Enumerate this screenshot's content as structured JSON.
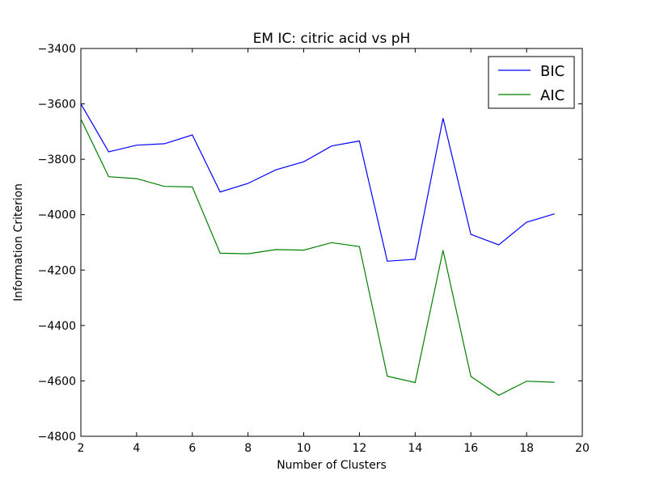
{
  "chart_data": {
    "type": "line",
    "title": "EM IC: citric acid vs pH",
    "xlabel": "Number of Clusters",
    "ylabel": "Information Criterion",
    "xlim": [
      2,
      20
    ],
    "ylim": [
      -4800,
      -3400
    ],
    "xticks": [
      2,
      4,
      6,
      8,
      10,
      12,
      14,
      16,
      18,
      20
    ],
    "yticks": [
      -3400,
      -3600,
      -3800,
      -4000,
      -4200,
      -4400,
      -4600,
      -4800
    ],
    "x": [
      2,
      3,
      4,
      5,
      6,
      7,
      8,
      9,
      10,
      11,
      12,
      13,
      14,
      15,
      16,
      17,
      18,
      19
    ],
    "series": [
      {
        "name": "BIC",
        "color": "#0000ff",
        "values": [
          -3600,
          -3773,
          -3749,
          -3744,
          -3712,
          -3918,
          -3887,
          -3838,
          -3809,
          -3752,
          -3734,
          -4168,
          -4161,
          -3652,
          -4071,
          -4109,
          -4027,
          -3997
        ]
      },
      {
        "name": "AIC",
        "color": "#008000",
        "values": [
          -3655,
          -3863,
          -3870,
          -3898,
          -3900,
          -4139,
          -4141,
          -4126,
          -4128,
          -4101,
          -4115,
          -4583,
          -4606,
          -4129,
          -4584,
          -4652,
          -4601,
          -4605
        ]
      }
    ],
    "grid": false,
    "legend": "top-right"
  }
}
